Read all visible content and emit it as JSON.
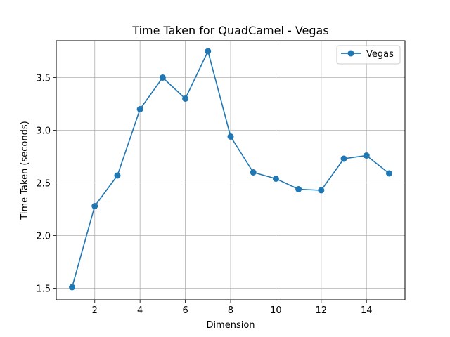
{
  "chart_data": {
    "type": "line",
    "title": "Time Taken for QuadCamel - Vegas",
    "xlabel": "Dimension",
    "ylabel": "Time Taken (seconds)",
    "xlim": [
      0.3,
      15.7
    ],
    "ylim": [
      1.39,
      3.85
    ],
    "xticks": [
      2,
      4,
      6,
      8,
      10,
      12,
      14
    ],
    "yticks": [
      1.5,
      2.0,
      2.5,
      3.0,
      3.5
    ],
    "grid": true,
    "legend_position": "top-right",
    "series": [
      {
        "name": "Vegas",
        "color": "#1f77b4",
        "marker": "circle",
        "x": [
          1,
          2,
          3,
          4,
          5,
          6,
          7,
          8,
          9,
          10,
          11,
          12,
          13,
          14,
          15
        ],
        "y": [
          1.51,
          2.28,
          2.57,
          3.2,
          3.5,
          3.3,
          3.75,
          2.94,
          2.6,
          2.54,
          2.44,
          2.43,
          2.73,
          2.76,
          2.59
        ]
      }
    ]
  }
}
